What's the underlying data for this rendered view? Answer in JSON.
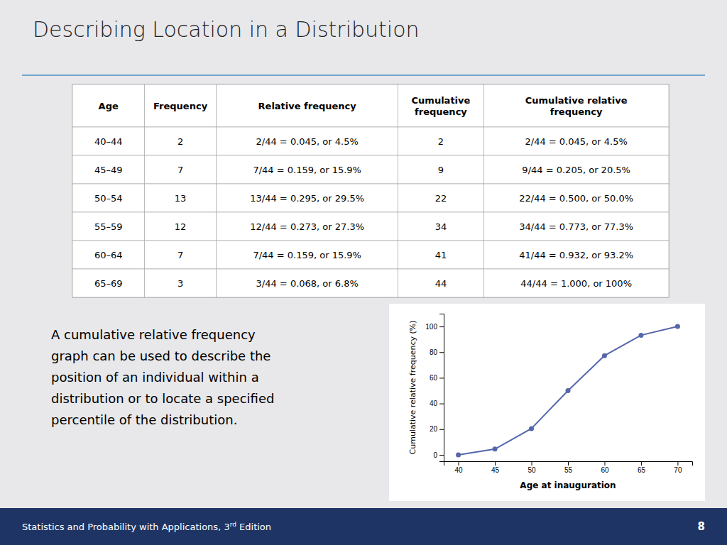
{
  "chart_data": {
    "type": "line",
    "title": "Describing Location in a Distribution",
    "x": [
      40,
      45,
      50,
      55,
      60,
      65,
      70
    ],
    "values": [
      0,
      4.5,
      20.5,
      50.0,
      77.3,
      93.2,
      100.0
    ],
    "x_label": "Age at inauguration",
    "y_label": "Cumulative relative frequency (%)",
    "xlim": [
      38,
      72
    ],
    "ylim": [
      -5,
      110
    ],
    "xticks": [
      40,
      45,
      50,
      55,
      60,
      65,
      70
    ],
    "yticks": [
      0,
      20,
      40,
      60,
      80,
      100
    ],
    "color": "#5566aa",
    "marker": "circle",
    "line_style": "solid",
    "grid": false
  },
  "page": {
    "footer": [
      "Statistics and Probability with Applications, 3",
      "rd",
      " Edition"
    ],
    "footer_page": "8",
    "table": {
      "headers": [
        "Age",
        "Frequency",
        "Relative frequency",
        "Cumulative\nfrequency",
        "Cumulative relative\nfrequency"
      ],
      "rows": [
        [
          "40–44",
          "2",
          "2/44 = 0.045, or 4.5%",
          "2",
          "2/44 = 0.045, or 4.5%"
        ],
        [
          "45–49",
          "7",
          "7/44 = 0.159, or 15.9%",
          "9",
          "9/44 = 0.205, or 20.5%"
        ],
        [
          "50–54",
          "13",
          "13/44 = 0.295, or 29.5%",
          "22",
          "22/44 = 0.500, or 50.0%"
        ],
        [
          "55–59",
          "12",
          "12/44 = 0.273, or 27.3%",
          "34",
          "34/44 = 0.773, or 77.3%"
        ],
        [
          "60–64",
          "7",
          "7/44 = 0.159, or 15.9%",
          "41",
          "41/44 = 0.932, or 93.2%"
        ],
        [
          "65–69",
          "3",
          "3/44 = 0.068, or 6.8%",
          "44",
          "44/44 = 1.000, or 100%"
        ]
      ]
    },
    "description": "A cumulative relative frequency\ngraph can be used to describe the\nposition of an individual within a\ndistribution or to locate a specified\npercentile of the distribution."
  }
}
